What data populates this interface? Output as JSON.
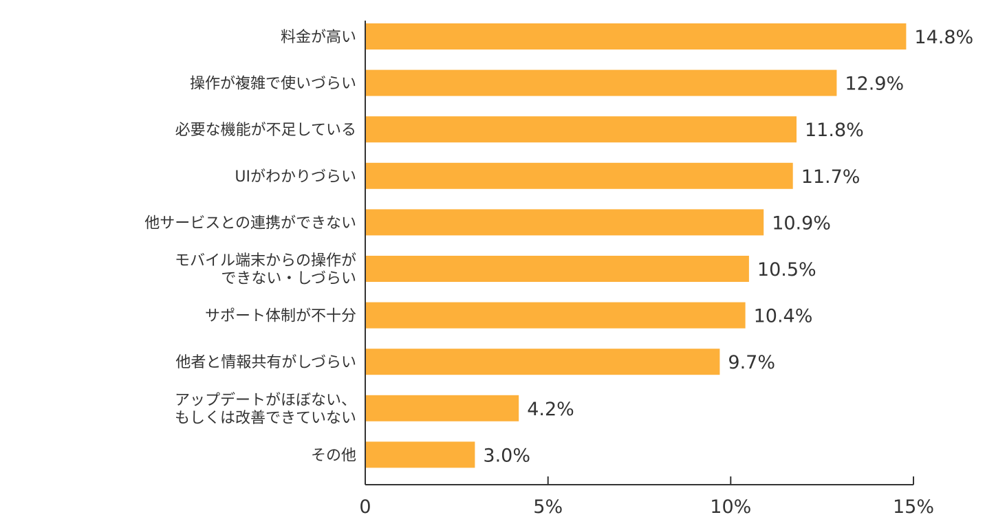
{
  "chart_data": {
    "type": "bar",
    "orientation": "horizontal",
    "title": "",
    "xlabel": "",
    "ylabel": "",
    "categories": [
      "料金が高い",
      "操作が複雑で使いづらい",
      "必要な機能が不足している",
      "UIがわかりづらい",
      "他サービスとの連携ができない",
      "モバイル端末からの操作が\nできない・しづらい",
      "サポート体制が不十分",
      "他者と情報共有がしづらい",
      "アップデートがほぼない、\nもしくは改善できていない",
      "その他"
    ],
    "values": [
      14.8,
      12.9,
      11.8,
      11.7,
      10.9,
      10.5,
      10.4,
      9.7,
      4.2,
      3.0
    ],
    "value_labels": [
      "14.8%",
      "12.9%",
      "11.8%",
      "11.7%",
      "10.9%",
      "10.5%",
      "10.4%",
      "9.7%",
      "4.2%",
      "3.0%"
    ],
    "xlim": [
      0,
      15
    ],
    "xticks": [
      0,
      5,
      10,
      15
    ],
    "xtick_labels": [
      "0",
      "5%",
      "10%",
      "15%"
    ],
    "grid": false,
    "legend": "none",
    "bar_color": "#FDB03A",
    "axis_color": "#333333",
    "text_color": "#333333"
  }
}
